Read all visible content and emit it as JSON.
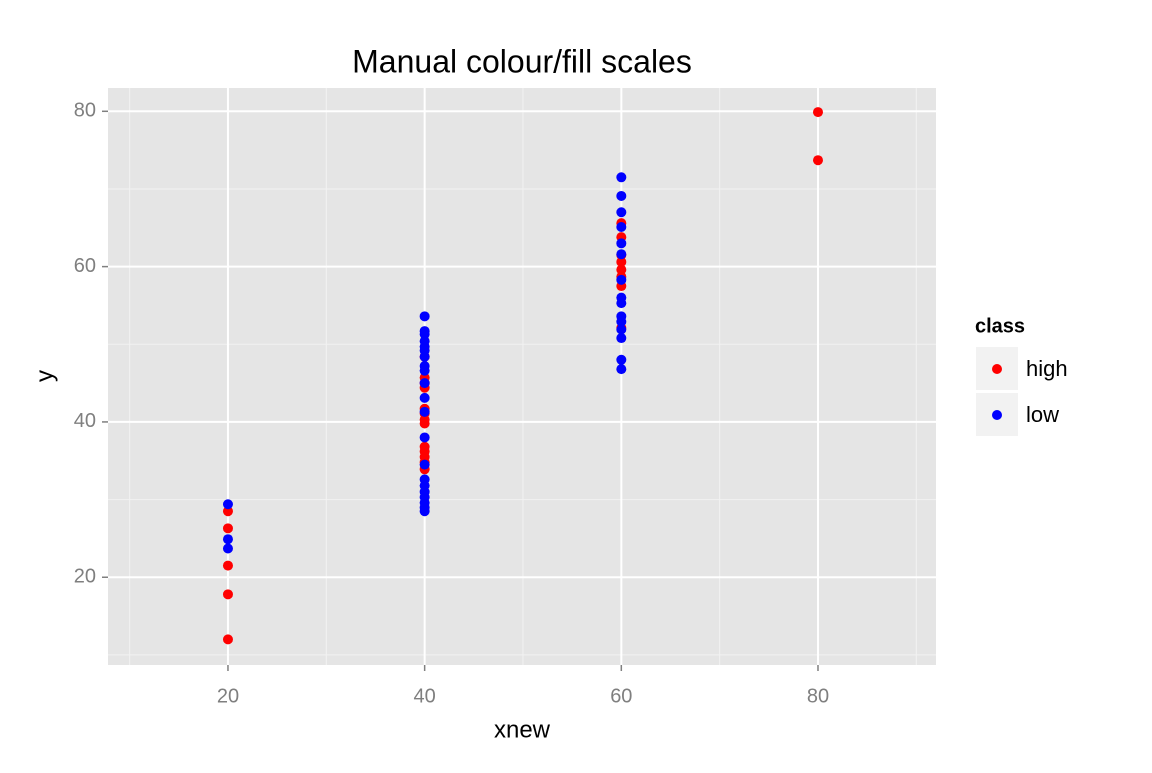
{
  "chart_data": {
    "type": "scatter",
    "title": "Manual colour/fill scales",
    "x_label": "xnew",
    "y_label": "y",
    "legend_title": "class",
    "series": [
      {
        "name": "high",
        "color": "#ff0000",
        "x": [
          20,
          20,
          20,
          20,
          20,
          40,
          40,
          40,
          40,
          40,
          40,
          40,
          40,
          40,
          40,
          40,
          40,
          40,
          60,
          60,
          60,
          60,
          60,
          60,
          60,
          60,
          80,
          80
        ],
        "values": [
          28.5,
          26.3,
          21.5,
          17.8,
          12.0,
          48.4,
          45.7,
          45.0,
          44.4,
          41.7,
          41.1,
          40.3,
          39.8,
          36.8,
          36.2,
          35.5,
          34.8,
          33.9,
          65.6,
          63.8,
          61.5,
          60.6,
          59.6,
          58.7,
          57.5,
          52.1,
          79.9,
          73.7
        ]
      },
      {
        "name": "low",
        "color": "#0000ff",
        "x": [
          20,
          20,
          20,
          40,
          40,
          40,
          40,
          40,
          40,
          40,
          40,
          40,
          40,
          40,
          40,
          40,
          40,
          40,
          40,
          40,
          40,
          40,
          40,
          40,
          60,
          60,
          60,
          60,
          60,
          60,
          60,
          60,
          60,
          60,
          60,
          60,
          60,
          60,
          60
        ],
        "values": [
          29.4,
          24.9,
          23.7,
          53.6,
          51.7,
          51.3,
          50.4,
          49.7,
          49.2,
          48.4,
          47.2,
          46.6,
          45.0,
          43.1,
          41.3,
          38.0,
          34.5,
          32.6,
          31.8,
          31.0,
          30.3,
          29.6,
          29.0,
          28.5,
          71.5,
          69.1,
          67.0,
          65.1,
          63.0,
          61.6,
          58.3,
          56.0,
          55.3,
          53.6,
          52.9,
          51.9,
          50.8,
          48.0,
          46.8
        ]
      }
    ],
    "xlim": [
      7.8,
      92.0
    ],
    "ylim": [
      8.7,
      83.0
    ],
    "xticks": [
      20,
      40,
      60,
      80
    ],
    "yticks": [
      20,
      40,
      60,
      80
    ],
    "xminor": [
      10,
      30,
      50,
      70,
      90
    ],
    "yminor": [
      10,
      30,
      50,
      70
    ],
    "grid": true
  }
}
